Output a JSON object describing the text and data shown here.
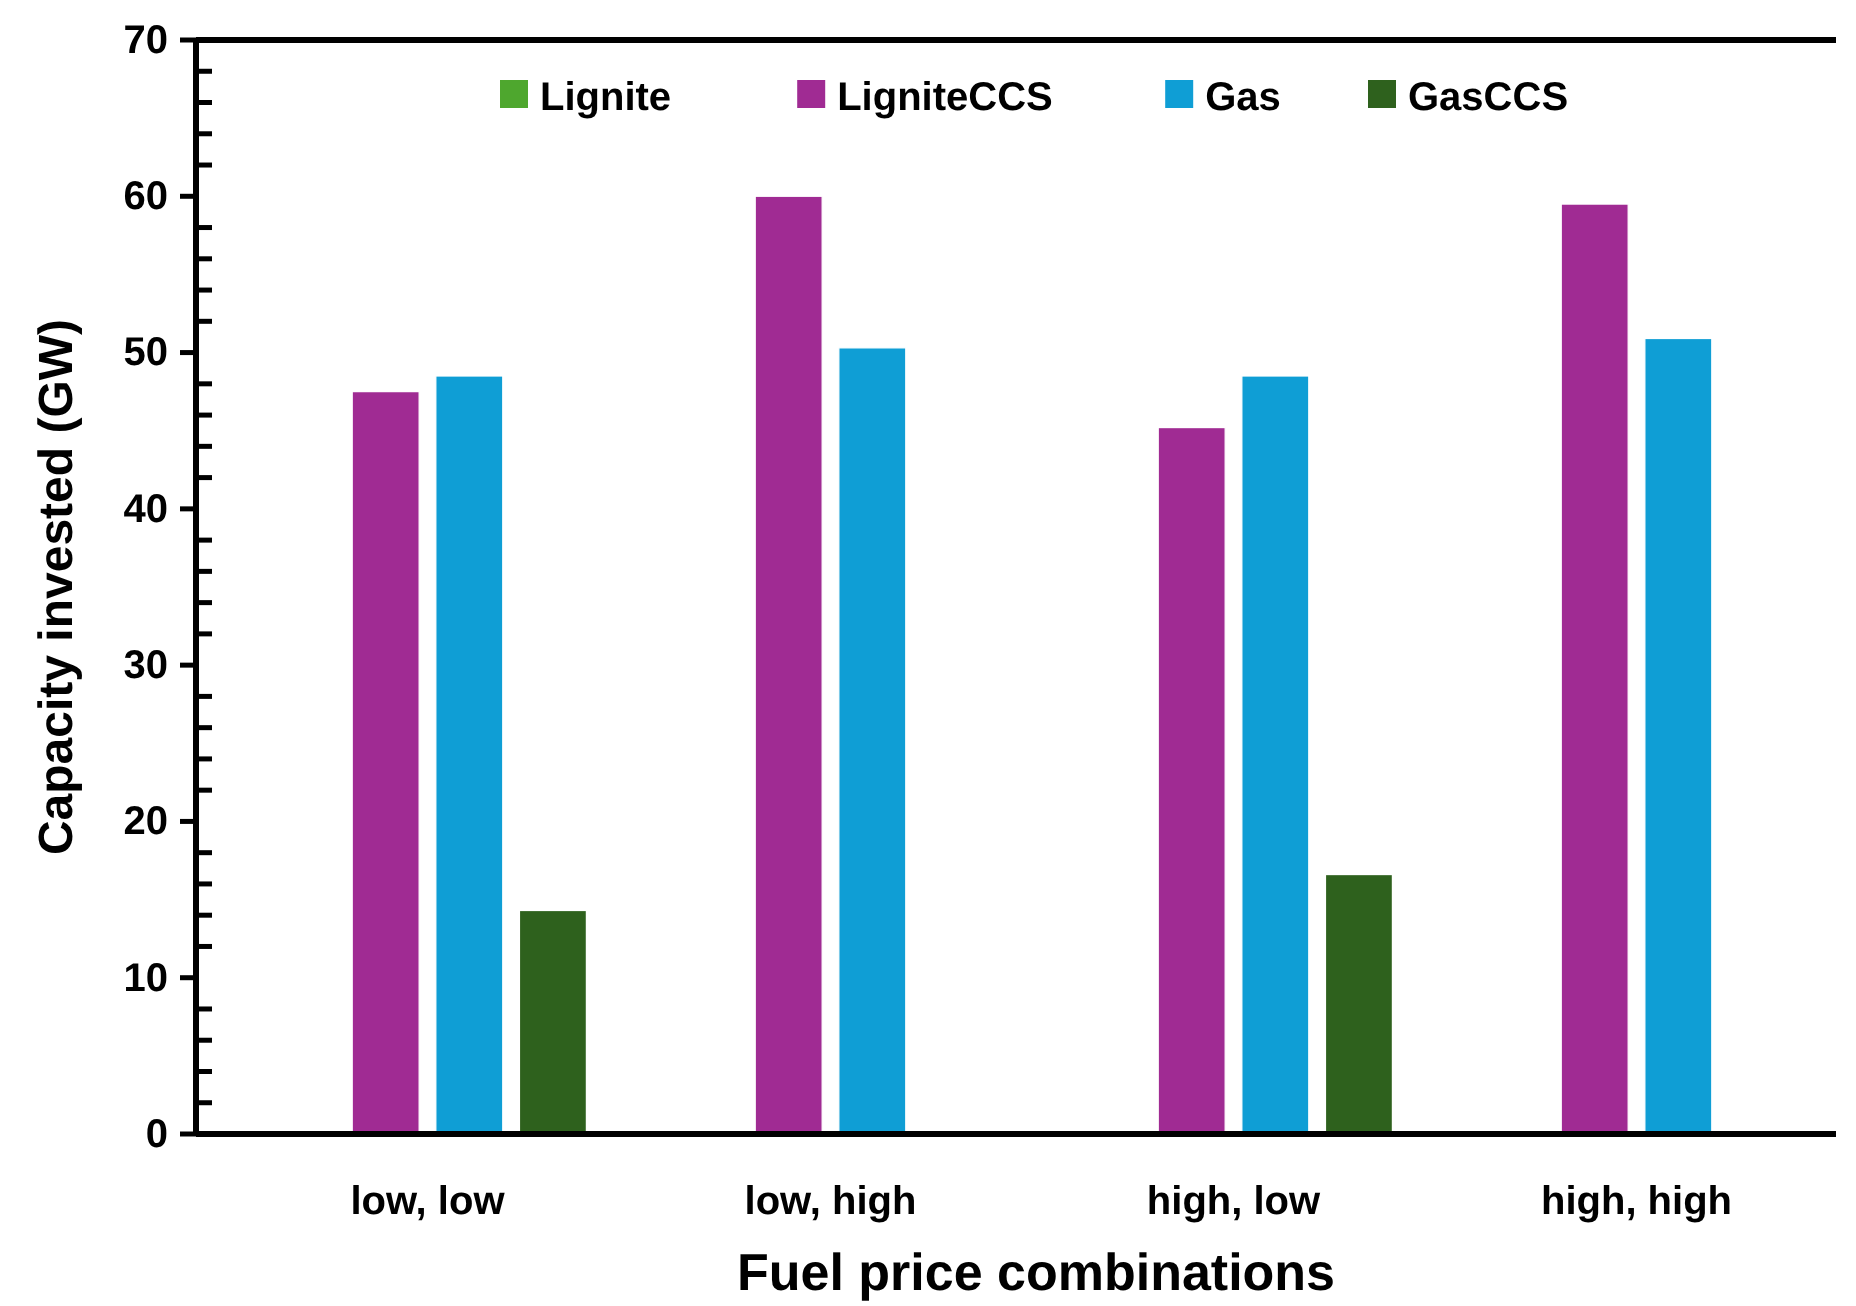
{
  "chart_data": {
    "type": "bar",
    "xlabel": "Fuel price combinations",
    "ylabel": "Capacity invested (GW)",
    "categories": [
      "low, low",
      "low, high",
      "high, low",
      "high, high"
    ],
    "series": [
      {
        "name": "Lignite",
        "color": "#4ea72e",
        "values": [
          null,
          null,
          null,
          null
        ]
      },
      {
        "name": "LigniteCCS",
        "color": "#a02b93",
        "values": [
          47.5,
          60.0,
          45.2,
          59.5
        ]
      },
      {
        "name": "Gas",
        "color": "#0f9ed5",
        "values": [
          48.5,
          50.3,
          48.5,
          50.9
        ]
      },
      {
        "name": "GasCCS",
        "color": "#2e611d",
        "values": [
          14.3,
          null,
          16.6,
          null
        ]
      }
    ],
    "ylim": [
      0,
      70
    ],
    "yticks": [
      0,
      {
        "value": 2,
        "label": null
      },
      {
        "value": 4,
        "label": null
      },
      {
        "value": 6,
        "label": null
      },
      {
        "value": 8,
        "label": null
      },
      10,
      {
        "value": 12,
        "label": null
      },
      {
        "value": 14,
        "label": null
      },
      {
        "value": 16,
        "label": null
      },
      {
        "value": 18,
        "label": null
      },
      20,
      {
        "value": 22,
        "label": null
      },
      {
        "value": 24,
        "label": null
      },
      {
        "value": 26,
        "label": null
      },
      {
        "value": 28,
        "label": null
      },
      30,
      {
        "value": 32,
        "label": null
      },
      {
        "value": 34,
        "label": null
      },
      {
        "value": 36,
        "label": null
      },
      {
        "value": 38,
        "label": null
      },
      40,
      {
        "value": 42,
        "label": null
      },
      {
        "value": 44,
        "label": null
      },
      {
        "value": 46,
        "label": null
      },
      {
        "value": 48,
        "label": null
      },
      50,
      {
        "value": 52,
        "label": null
      },
      {
        "value": 54,
        "label": null
      },
      {
        "value": 56,
        "label": null
      },
      {
        "value": 58,
        "label": null
      },
      60,
      {
        "value": 62,
        "label": null
      },
      {
        "value": 64,
        "label": null
      },
      {
        "value": 66,
        "label": null
      },
      {
        "value": 68,
        "label": null
      },
      70
    ],
    "grid": false,
    "legend": "top"
  }
}
